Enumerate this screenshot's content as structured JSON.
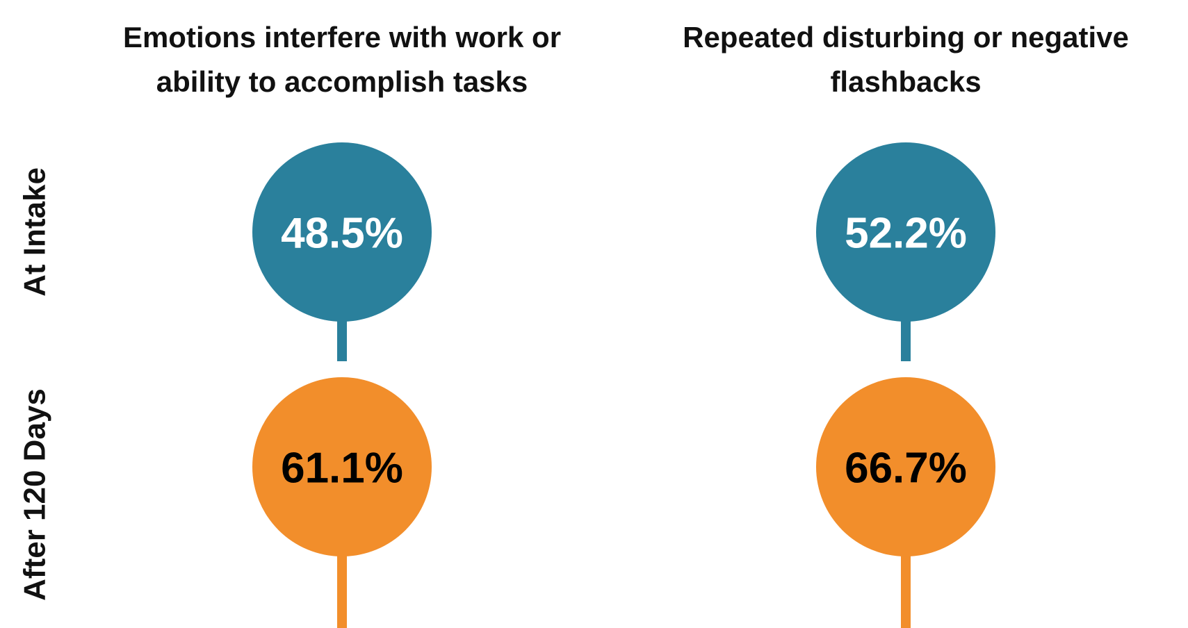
{
  "chart_data": {
    "type": "lollipop",
    "categories": [
      "At Intake",
      "After 120 Days"
    ],
    "category_colors": [
      "#2a809c",
      "#f28e2b"
    ],
    "label_colors": [
      "#ffffff",
      "#000000"
    ],
    "series": [
      {
        "name": "Emotions interfere with work or ability to accomplish tasks",
        "values": [
          48.5,
          61.1
        ],
        "value_labels": [
          "48.5%",
          "61.1%"
        ]
      },
      {
        "name": "Repeated disturbing or negative flashbacks",
        "values": [
          52.2,
          66.7
        ],
        "value_labels": [
          "52.2%",
          "66.7%"
        ]
      }
    ]
  }
}
